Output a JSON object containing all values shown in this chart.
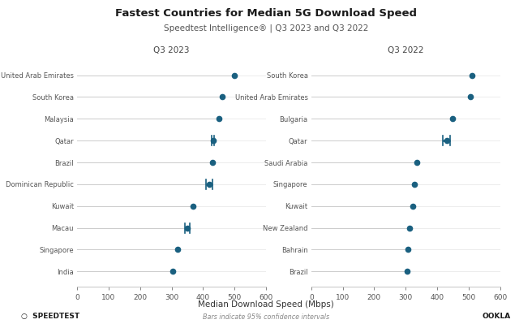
{
  "title": "Fastest Countries for Median 5G Download Speed",
  "subtitle": "Speedtest Intelligence® | Q3 2023 and Q3 2022",
  "xlabel": "Median Download Speed (Mbps)",
  "xlabel_sub": "Bars indicate 95% confidence intervals",
  "left_panel_title": "Q3 2023",
  "right_panel_title": "Q3 2022",
  "left_countries": [
    "United Arab Emirates",
    "South Korea",
    "Malaysia",
    "Qatar",
    "Brazil",
    "Dominican Republic",
    "Kuwait",
    "Macau",
    "Singapore",
    "India"
  ],
  "left_values": [
    500,
    462,
    450,
    432,
    430,
    420,
    368,
    350,
    318,
    303
  ],
  "left_ci_low": [
    500,
    462,
    450,
    428,
    430,
    410,
    368,
    342,
    318,
    303
  ],
  "left_ci_high": [
    500,
    462,
    450,
    436,
    430,
    430,
    368,
    358,
    318,
    303
  ],
  "right_countries": [
    "South Korea",
    "United Arab Emirates",
    "Bulgaria",
    "Qatar",
    "Saudi Arabia",
    "Singapore",
    "Kuwait",
    "New Zealand",
    "Bahrain",
    "Brazil"
  ],
  "right_values": [
    512,
    506,
    450,
    430,
    335,
    328,
    322,
    313,
    308,
    305
  ],
  "right_ci_low": [
    512,
    506,
    450,
    418,
    335,
    328,
    322,
    313,
    308,
    305
  ],
  "right_ci_high": [
    512,
    506,
    450,
    442,
    335,
    328,
    322,
    313,
    308,
    305
  ],
  "dot_color": "#1a6080",
  "line_color": "#cccccc",
  "ci_color": "#1a6080",
  "bg_color": "#ffffff",
  "text_color": "#555555",
  "xlim": [
    0,
    600
  ],
  "xticks": [
    0,
    100,
    200,
    300,
    400,
    500,
    600
  ],
  "footer_left": "SPEEDTEST",
  "footer_right": "OOKLA"
}
